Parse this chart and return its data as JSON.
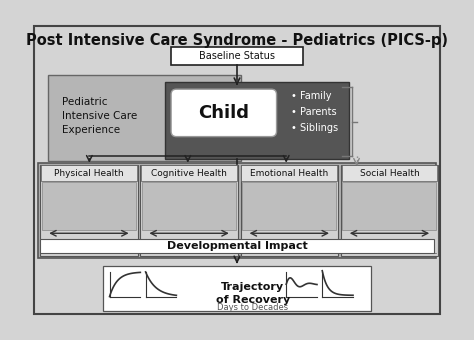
{
  "title": "Post Intensive Care Syndrome - Pediatrics (PICS-p)",
  "title_fontsize": 10.5,
  "bg_outer": "#d4d4d4",
  "bg_white": "#ffffff",
  "color_black": "#111111",
  "color_white": "#ffffff",
  "color_light_gray": "#bebebe",
  "color_dark_gray": "#555555",
  "color_medium_gray": "#888888",
  "color_box_gray": "#cacaca",
  "color_icon_bg": "#b8b8b8",
  "baseline_label": "Baseline Status",
  "picu_label": "Pediatric\nIntensive Care\nExperience",
  "child_label": "Child",
  "family_label": "• Family\n• Parents\n• Siblings",
  "health_categories": [
    "Physical Health",
    "Cognitive Health",
    "Emotional Health",
    "Social Health"
  ],
  "dev_impact_label": "Developmental Impact",
  "trajectory_label": "Trajectory\nof Recovery",
  "days_label": "Days to Decades"
}
